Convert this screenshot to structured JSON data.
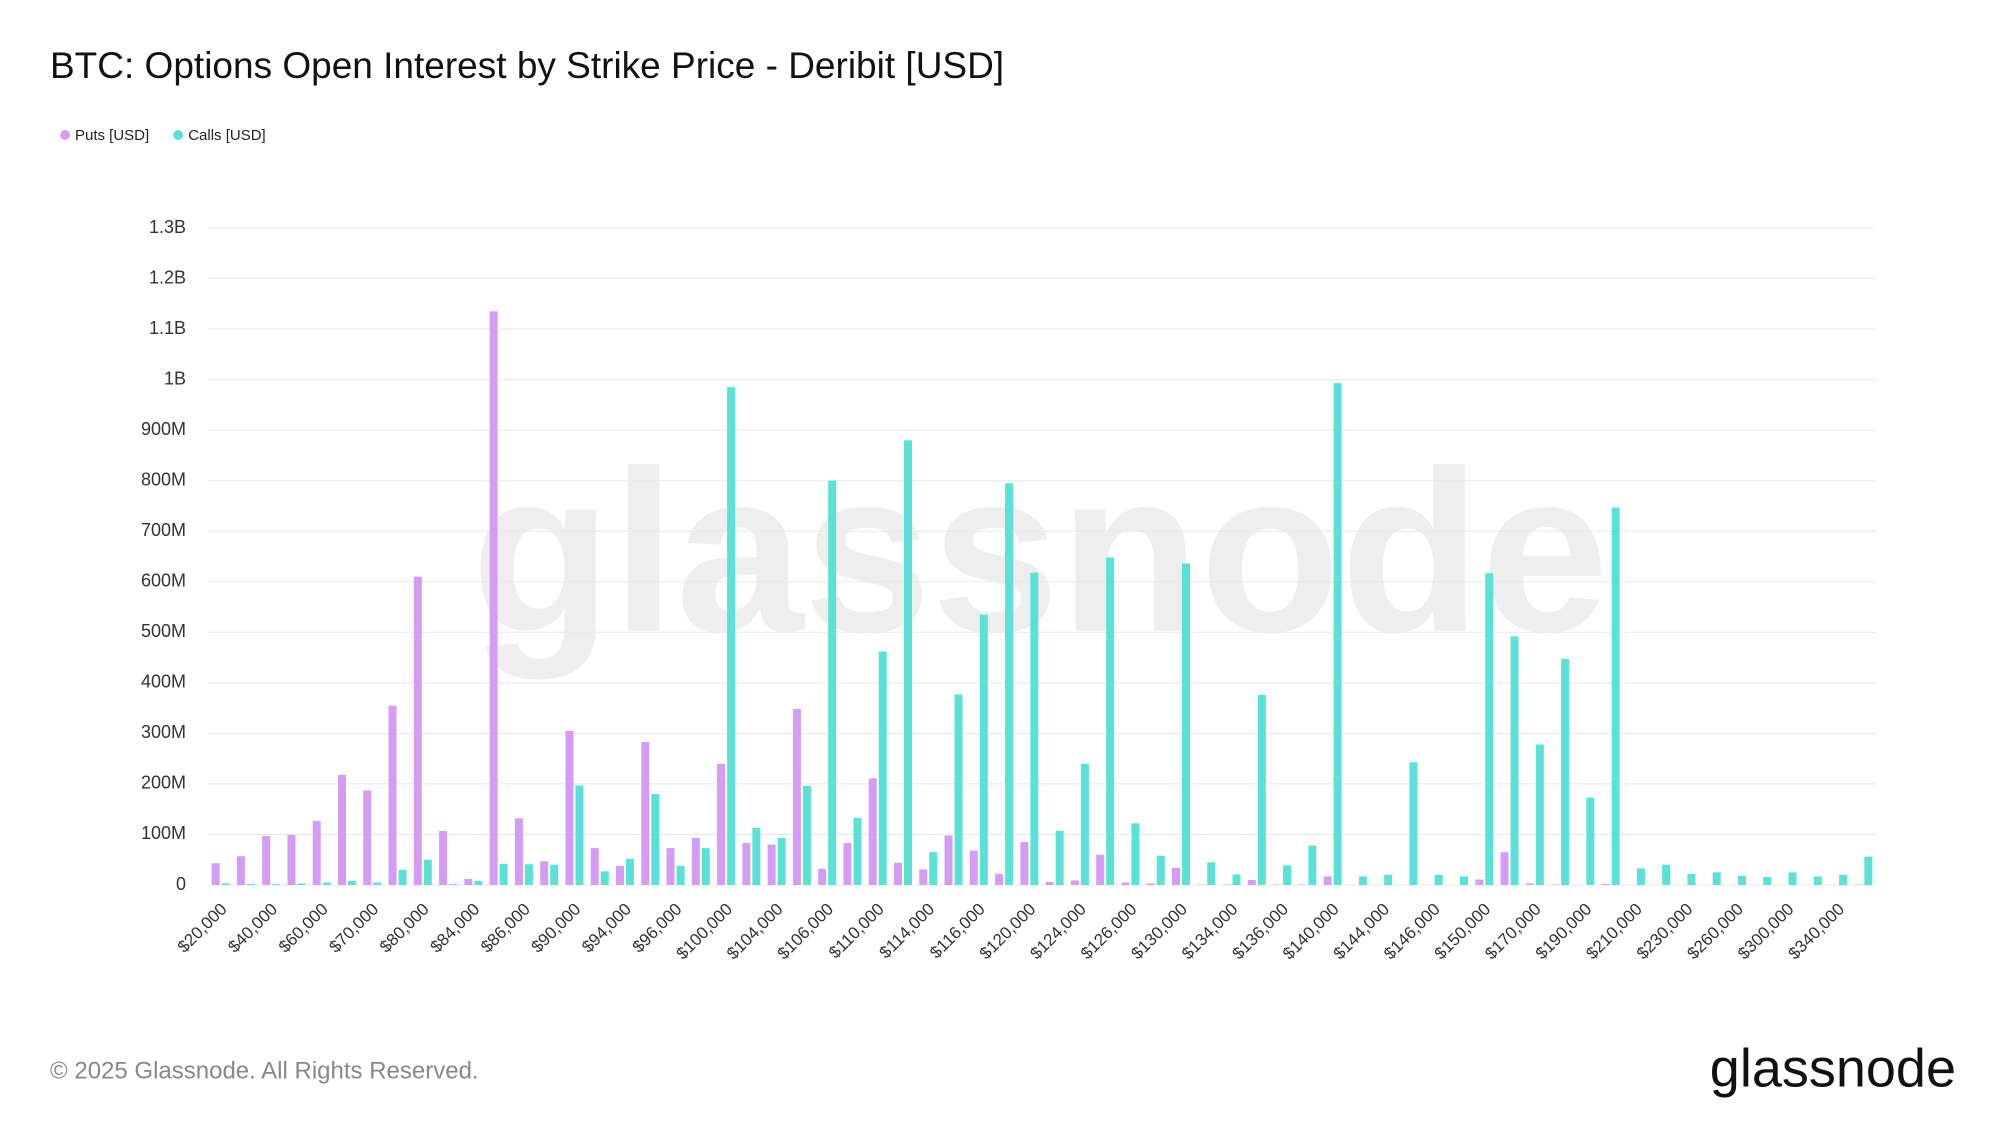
{
  "chart_data": {
    "type": "bar",
    "title": "BTC: Options Open Interest by Strike Price - Deribit [USD]",
    "watermark": "glassnode",
    "footer": "© 2025 Glassnode. All Rights Reserved.",
    "logo": "glassnode",
    "grid": true,
    "legend": "top-left",
    "categories": [
      "$20,000",
      null,
      "$40,000",
      null,
      "$60,000",
      null,
      "$70,000",
      null,
      "$80,000",
      null,
      "$84,000",
      null,
      "$86,000",
      null,
      "$90,000",
      null,
      "$94,000",
      null,
      "$96,000",
      null,
      "$100,000",
      null,
      "$104,000",
      null,
      "$106,000",
      null,
      "$110,000",
      null,
      "$114,000",
      null,
      "$116,000",
      null,
      "$120,000",
      null,
      "$124,000",
      null,
      "$126,000",
      null,
      "$130,000",
      null,
      "$134,000",
      null,
      "$136,000",
      null,
      "$140,000",
      null,
      "$144,000",
      null,
      "$146,000",
      null,
      "$150,000",
      null,
      "$170,000",
      null,
      "$190,000",
      null,
      "$210,000",
      null,
      "$230,000",
      null,
      "$260,000",
      null,
      "$300,000",
      null,
      "$340,000",
      null
    ],
    "series": [
      {
        "name": "Puts [USD]",
        "color": "#d69cf5",
        "values": [
          43000000,
          57000000,
          97000000,
          99000000,
          127000000,
          218000000,
          187000000,
          355000000,
          610000000,
          107000000,
          12000000,
          1135000000,
          132000000,
          47000000,
          305000000,
          73000000,
          38000000,
          283000000,
          73000000,
          93000000,
          240000000,
          83000000,
          80000000,
          348000000,
          32000000,
          83000000,
          211000000,
          44000000,
          31000000,
          98000000,
          68000000,
          22000000,
          85000000,
          6000000,
          9000000,
          60000000,
          5000000,
          3000000,
          34000000,
          1000000,
          1000000,
          10000000,
          1000000,
          1000000,
          17000000,
          0,
          0,
          0,
          0,
          0,
          11000000,
          65000000,
          3000000,
          1000000,
          0,
          2000000,
          0,
          0,
          0,
          0,
          0,
          0,
          0,
          0,
          0,
          1000000
        ]
      },
      {
        "name": "Calls [USD]",
        "color": "#5ae2d8",
        "values": [
          3000000,
          2000000,
          2000000,
          3000000,
          5000000,
          8000000,
          5000000,
          30000000,
          50000000,
          2000000,
          8000000,
          42000000,
          41000000,
          40000000,
          197000000,
          27000000,
          52000000,
          180000000,
          38000000,
          73000000,
          985000000,
          113000000,
          93000000,
          196000000,
          800000000,
          133000000,
          462000000,
          880000000,
          65000000,
          377000000,
          535000000,
          795000000,
          618000000,
          107000000,
          240000000,
          648000000,
          122000000,
          58000000,
          636000000,
          45000000,
          21000000,
          376000000,
          39000000,
          78000000,
          993000000,
          17000000,
          20000000,
          243000000,
          20000000,
          17000000,
          617000000,
          492000000,
          278000000,
          447000000,
          173000000,
          747000000,
          33000000,
          40000000,
          22000000,
          25000000,
          18000000,
          16000000,
          25000000,
          17000000,
          20000000,
          56000000
        ]
      }
    ],
    "ylim": [
      0,
      1300000000
    ],
    "yticks": [
      0,
      {
        "value": 100000000,
        "label": "100M"
      },
      {
        "value": 200000000,
        "label": "200M"
      },
      {
        "value": 300000000,
        "label": "300M"
      },
      {
        "value": 400000000,
        "label": "400M"
      },
      {
        "value": 500000000,
        "label": "500M"
      },
      {
        "value": 600000000,
        "label": "600M"
      },
      {
        "value": 700000000,
        "label": "700M"
      },
      {
        "value": 800000000,
        "label": "800M"
      },
      {
        "value": 900000000,
        "label": "900M"
      },
      {
        "value": 1000000000,
        "label": "1B"
      },
      {
        "value": 1100000000,
        "label": "1.1B"
      },
      {
        "value": 1200000000,
        "label": "1.2B"
      },
      {
        "value": 1300000000,
        "label": "1.3B"
      }
    ]
  }
}
